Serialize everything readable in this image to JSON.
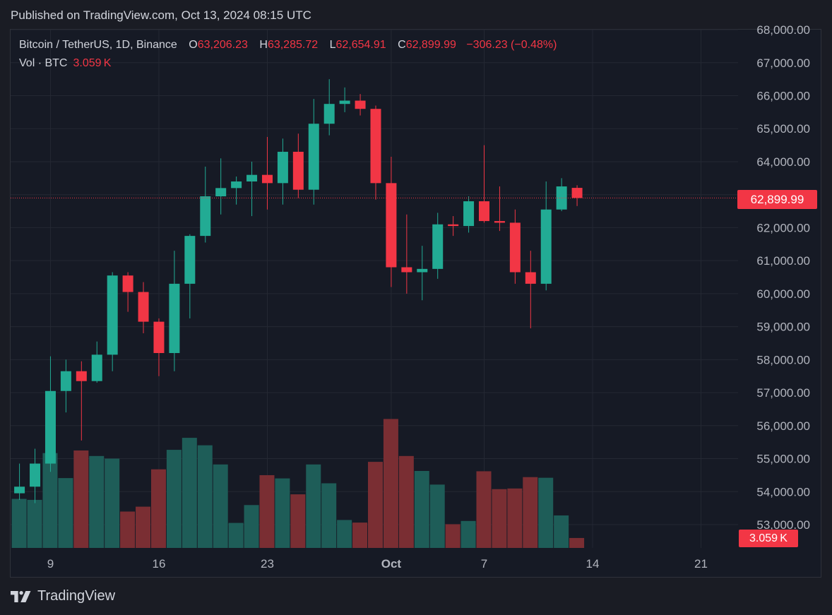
{
  "header": {
    "published": "Published on TradingView.com, Oct 13, 2024 08:15 UTC"
  },
  "legend": {
    "symbol": "Bitcoin / TetherUS, 1D, Binance",
    "open_label": "O",
    "open": "63,206.23",
    "high_label": "H",
    "high": "63,285.72",
    "low_label": "L",
    "low": "62,654.91",
    "close_label": "C",
    "close": "62,899.99",
    "change": "−306.23 (−0.48%)",
    "vol_label": "Vol · BTC",
    "vol_value": "3.059 K"
  },
  "price_tag": "62,899.99",
  "vol_tag": "3.059 K",
  "brand": {
    "name": "TradingView",
    "icon": "tradingview-logo-icon"
  },
  "colors": {
    "up": "#22ab94",
    "down": "#f23645",
    "up_vol": "#1e5d58",
    "down_vol": "#7a2e33",
    "grid": "#242833",
    "background": "#161a25"
  },
  "chart_data": {
    "type": "candlestick",
    "symbol": "Bitcoin / TetherUS",
    "interval": "1D",
    "exchange": "Binance",
    "ylim": [
      52600,
      68000
    ],
    "yticks": [
      "53,000.00",
      "54,000.00",
      "55,000.00",
      "56,000.00",
      "57,000.00",
      "58,000.00",
      "59,000.00",
      "60,000.00",
      "61,000.00",
      "62,000.00",
      "63,000.00",
      "64,000.00",
      "65,000.00",
      "66,000.00",
      "67,000.00",
      "68,000.00"
    ],
    "ytick_values": [
      53000,
      54000,
      55000,
      56000,
      57000,
      58000,
      59000,
      60000,
      61000,
      62000,
      63000,
      64000,
      65000,
      66000,
      67000,
      68000
    ],
    "xticks": [
      {
        "label": "9",
        "date": "2024-09-09",
        "bold": false
      },
      {
        "label": "16",
        "date": "2024-09-16",
        "bold": false
      },
      {
        "label": "23",
        "date": "2024-09-23",
        "bold": false
      },
      {
        "label": "Oct",
        "date": "2024-10-01",
        "bold": true
      },
      {
        "label": "7",
        "date": "2024-10-07",
        "bold": false
      },
      {
        "label": "14",
        "date": "2024-10-14",
        "bold": false
      },
      {
        "label": "21",
        "date": "2024-10-21",
        "bold": false
      }
    ],
    "last_price": 62899.99,
    "grid": true,
    "volume_unit": "BTC",
    "candles": [
      {
        "date": "2024-09-07",
        "open": 53950,
        "high": 54850,
        "low": 53750,
        "close": 54150,
        "volume": 15.1
      },
      {
        "date": "2024-09-08",
        "open": 54150,
        "high": 55300,
        "low": 53650,
        "close": 54850,
        "volume": 14.8
      },
      {
        "date": "2024-09-09",
        "open": 54850,
        "high": 58100,
        "low": 54600,
        "close": 57050,
        "volume": 29.2
      },
      {
        "date": "2024-09-10",
        "open": 57050,
        "high": 58000,
        "low": 56400,
        "close": 57650,
        "volume": 21.5
      },
      {
        "date": "2024-09-11",
        "open": 57650,
        "high": 57950,
        "low": 55550,
        "close": 57350,
        "volume": 30.0
      },
      {
        "date": "2024-09-12",
        "open": 57350,
        "high": 58550,
        "low": 57300,
        "close": 58150,
        "volume": 28.3
      },
      {
        "date": "2024-09-13",
        "open": 58150,
        "high": 60650,
        "low": 57650,
        "close": 60550,
        "volume": 27.5
      },
      {
        "date": "2024-09-14",
        "open": 60550,
        "high": 60650,
        "low": 59450,
        "close": 60050,
        "volume": 11.2
      },
      {
        "date": "2024-09-15",
        "open": 60050,
        "high": 60350,
        "low": 58800,
        "close": 59150,
        "volume": 12.7
      },
      {
        "date": "2024-09-16",
        "open": 59150,
        "high": 59250,
        "low": 57500,
        "close": 58200,
        "volume": 24.2
      },
      {
        "date": "2024-09-17",
        "open": 58200,
        "high": 61300,
        "low": 57650,
        "close": 60300,
        "volume": 30.2
      },
      {
        "date": "2024-09-18",
        "open": 60300,
        "high": 61800,
        "low": 59250,
        "close": 61750,
        "volume": 33.9
      },
      {
        "date": "2024-09-19",
        "open": 61750,
        "high": 63850,
        "low": 61550,
        "close": 62950,
        "volume": 31.6
      },
      {
        "date": "2024-09-20",
        "open": 62950,
        "high": 64100,
        "low": 62400,
        "close": 63200,
        "volume": 25.7
      },
      {
        "date": "2024-09-21",
        "open": 63200,
        "high": 63550,
        "low": 62700,
        "close": 63400,
        "volume": 7.7
      },
      {
        "date": "2024-09-22",
        "open": 63400,
        "high": 64000,
        "low": 62350,
        "close": 63600,
        "volume": 13.2
      },
      {
        "date": "2024-09-23",
        "open": 63600,
        "high": 64750,
        "low": 62550,
        "close": 63350,
        "volume": 22.4
      },
      {
        "date": "2024-09-24",
        "open": 63350,
        "high": 64700,
        "low": 62700,
        "close": 64300,
        "volume": 21.4
      },
      {
        "date": "2024-09-25",
        "open": 64300,
        "high": 64850,
        "low": 62900,
        "close": 63150,
        "volume": 16.5
      },
      {
        "date": "2024-09-26",
        "open": 63150,
        "high": 65900,
        "low": 62700,
        "close": 65150,
        "volume": 25.7
      },
      {
        "date": "2024-09-27",
        "open": 65150,
        "high": 66500,
        "low": 64800,
        "close": 65750,
        "volume": 19.9
      },
      {
        "date": "2024-09-28",
        "open": 65750,
        "high": 66250,
        "low": 65500,
        "close": 65850,
        "volume": 8.6
      },
      {
        "date": "2024-09-29",
        "open": 65850,
        "high": 66050,
        "low": 65400,
        "close": 65600,
        "volume": 7.8
      },
      {
        "date": "2024-09-30",
        "open": 65600,
        "high": 65700,
        "low": 62850,
        "close": 63350,
        "volume": 26.5
      },
      {
        "date": "2024-10-01",
        "open": 63350,
        "high": 64150,
        "low": 60200,
        "close": 60800,
        "volume": 39.7
      },
      {
        "date": "2024-10-02",
        "open": 60800,
        "high": 62400,
        "low": 60000,
        "close": 60650,
        "volume": 28.3
      },
      {
        "date": "2024-10-03",
        "open": 60650,
        "high": 61450,
        "low": 59800,
        "close": 60750,
        "volume": 23.7
      },
      {
        "date": "2024-10-04",
        "open": 60750,
        "high": 62450,
        "low": 60450,
        "close": 62100,
        "volume": 19.5
      },
      {
        "date": "2024-10-05",
        "open": 62100,
        "high": 62350,
        "low": 61750,
        "close": 62050,
        "volume": 7.3
      },
      {
        "date": "2024-10-06",
        "open": 62050,
        "high": 62950,
        "low": 61850,
        "close": 62800,
        "volume": 8.3
      },
      {
        "date": "2024-10-07",
        "open": 62800,
        "high": 64500,
        "low": 62150,
        "close": 62200,
        "volume": 23.6
      },
      {
        "date": "2024-10-08",
        "open": 62200,
        "high": 63250,
        "low": 61900,
        "close": 62150,
        "volume": 18.1
      },
      {
        "date": "2024-10-09",
        "open": 62150,
        "high": 62550,
        "low": 60300,
        "close": 60650,
        "volume": 18.3
      },
      {
        "date": "2024-10-10",
        "open": 60650,
        "high": 61300,
        "low": 58950,
        "close": 60300,
        "volume": 21.8
      },
      {
        "date": "2024-10-11",
        "open": 60300,
        "high": 63400,
        "low": 60100,
        "close": 62550,
        "volume": 21.6
      },
      {
        "date": "2024-10-12",
        "open": 62550,
        "high": 63500,
        "low": 62500,
        "close": 63250,
        "volume": 10.0
      },
      {
        "date": "2024-10-13",
        "open": 63206.23,
        "high": 63285.72,
        "low": 62654.91,
        "close": 62899.99,
        "volume": 3.059
      }
    ]
  }
}
